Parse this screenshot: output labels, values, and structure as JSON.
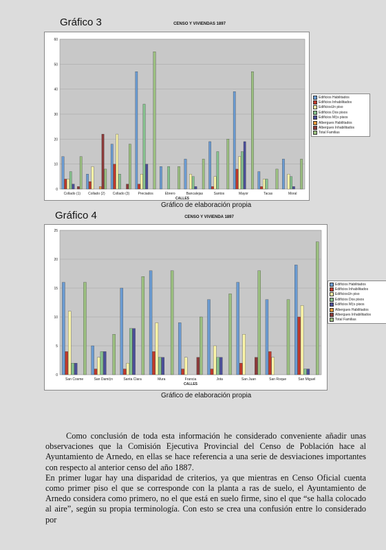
{
  "figures": [
    {
      "label": "Gráfico 3",
      "caption": "Gráfico de elaboración propia"
    },
    {
      "label": "Gráfico 4",
      "caption": "Gráfico de elaboración propia"
    }
  ],
  "legend_items": [
    {
      "label": "Edificios Habilitados",
      "color": "#6b9bd1"
    },
    {
      "label": "Edificios Inhabilitados",
      "color": "#c0392b"
    },
    {
      "label": "EdificiosUn piso",
      "color": "#fbf5a8"
    },
    {
      "label": "Edificios Dos pisos",
      "color": "#86c18e"
    },
    {
      "label": "Edificios M‡s pisos",
      "color": "#4b4f99"
    },
    {
      "label": "Albergues Habilitados",
      "color": "#e89a3b"
    },
    {
      "label": "Albergues Inhabilitados",
      "color": "#8b3a3a"
    },
    {
      "label": "Total Familias",
      "color": "#9bbf80"
    }
  ],
  "chart_data": [
    {
      "type": "bar",
      "title": "CENSO Y VIVIENDAS 1897",
      "xlabel": "CALLES",
      "ylabel": "",
      "ylim": [
        0,
        60
      ],
      "yticks": [
        0,
        10,
        20,
        30,
        40,
        50,
        60
      ],
      "categories": [
        "Collado (1)",
        "Collado (2)",
        "Collado (3)",
        "Preciados",
        "Ebrero",
        "Bancalejas",
        "Santos",
        "Mayor",
        "Tacas",
        "Moral"
      ],
      "series": [
        {
          "name": "Edificios Habilitados",
          "values": [
            13,
            6,
            18,
            47,
            9,
            12,
            19,
            39,
            7,
            12
          ]
        },
        {
          "name": "Edificios Inhabilitados",
          "values": [
            4,
            3,
            10,
            2,
            0,
            0,
            1,
            8,
            1,
            0
          ]
        },
        {
          "name": "EdificiosUn piso",
          "values": [
            4,
            9,
            22,
            6,
            0,
            6,
            5,
            13,
            4,
            6
          ]
        },
        {
          "name": "Edificios Dos pisos",
          "values": [
            7,
            0,
            6,
            34,
            9,
            5,
            15,
            15,
            4,
            5
          ]
        },
        {
          "name": "Edificios M‡s pisos",
          "values": [
            2,
            0,
            0,
            10,
            0,
            1,
            0,
            19,
            0,
            1
          ]
        },
        {
          "name": "Albergues Habilitados",
          "values": [
            0,
            1,
            0,
            0,
            0,
            0,
            0,
            0,
            0,
            0
          ]
        },
        {
          "name": "Albergues Inhabilitados",
          "values": [
            1,
            22,
            2,
            0,
            0,
            0,
            0,
            0,
            0,
            0
          ]
        },
        {
          "name": "Total Familias",
          "values": [
            13,
            8,
            18,
            55,
            9,
            12,
            20,
            47,
            8,
            12
          ]
        }
      ]
    },
    {
      "type": "bar",
      "title": "CENSO Y VIVIENDA 1897",
      "xlabel": "CALLES",
      "ylabel": "",
      "ylim": [
        0,
        25
      ],
      "yticks": [
        0,
        5,
        10,
        15,
        20,
        25
      ],
      "categories": [
        "San Cosme",
        "San Dami‡n",
        "Santa Clara",
        "Mura",
        "Francia",
        "Jota",
        "San Juan",
        "San Roque",
        "San Miguel"
      ],
      "series": [
        {
          "name": "Edificios Habilitados",
          "values": [
            16,
            5,
            15,
            18,
            9,
            13,
            16,
            13,
            19
          ]
        },
        {
          "name": "Edificios Inhabilitados",
          "values": [
            4,
            1,
            1,
            4,
            1,
            1,
            2,
            4,
            10
          ]
        },
        {
          "name": "EdificiosUn piso",
          "values": [
            11,
            3,
            2,
            9,
            3,
            5,
            7,
            3,
            12
          ]
        },
        {
          "name": "Edificios Dos pisos",
          "values": [
            2,
            4,
            8,
            3,
            0,
            3,
            0,
            0,
            1
          ]
        },
        {
          "name": "Edificios M‡s pisos",
          "values": [
            2,
            4,
            8,
            3,
            0,
            3,
            0,
            0,
            1
          ]
        },
        {
          "name": "Albergues Habilitados",
          "values": [
            0,
            0,
            0,
            0,
            0,
            0,
            0,
            0,
            0
          ]
        },
        {
          "name": "Albergues Inhabilitados",
          "values": [
            0,
            0,
            0,
            0,
            3,
            0,
            3,
            0,
            0
          ]
        },
        {
          "name": "Total Familias",
          "values": [
            16,
            7,
            17,
            18,
            10,
            14,
            18,
            13,
            23
          ]
        }
      ]
    }
  ],
  "body": {
    "paragraph1": "Como conclusión de toda esta información he considerado conveniente añadir unas observaciones que la Comisión Ejecutiva Provincial del Censo de Población hace al Ayuntamiento de Arnedo, en ellas se hace referencia a una serie de desviaciones importantes con respecto al anterior censo del año 1887.",
    "paragraph2": "En primer lugar hay una disparidad de criterios, ya que mientras en Censo Oficial cuenta como primer piso el que se corresponde con la planta a ras de suelo, el Ayuntamiento de Arnedo considera como primero, no el que está en suelo firme, sino el que “se halla colocado al aire”, según su propia terminología. Con esto se crea una confusión entre lo considerado por"
  }
}
